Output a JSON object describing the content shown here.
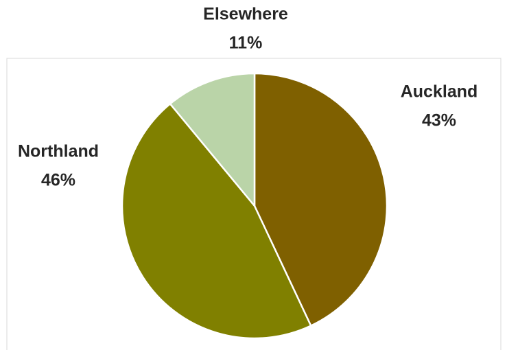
{
  "chart_data": {
    "type": "pie",
    "title": "",
    "categories": [
      "Auckland",
      "Northland",
      "Elsewhere"
    ],
    "values": [
      43,
      46,
      11
    ],
    "value_labels": [
      "43%",
      "46%",
      "11%"
    ],
    "colors": [
      "#7f6000",
      "#808000",
      "#bad4a8"
    ],
    "start_angle": "12 o'clock",
    "direction": "clockwise",
    "legend": "none",
    "data_labels": "outside",
    "frame_color": "#d9d9d9",
    "slice_border_color": "#ffffff"
  }
}
